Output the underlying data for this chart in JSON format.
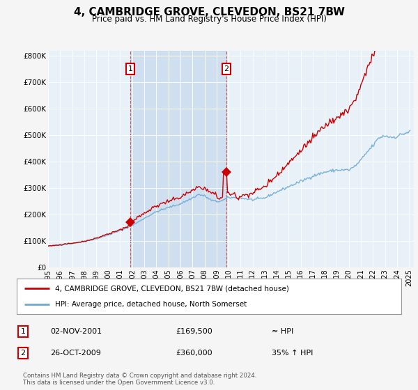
{
  "title": "4, CAMBRIDGE GROVE, CLEVEDON, BS21 7BW",
  "subtitle": "Price paid vs. HM Land Registry's House Price Index (HPI)",
  "bg_color": "#dce9f5",
  "outer_bg_color": "#f0f0f0",
  "chart_bg_color": "#e8f0f8",
  "shade_color": "#c5d8ec",
  "hpi_color": "#6aaad4",
  "price_color": "#cc0000",
  "grid_color": "#ffffff",
  "ylim": [
    0,
    820000
  ],
  "yticks": [
    0,
    100000,
    200000,
    300000,
    400000,
    500000,
    600000,
    700000,
    800000
  ],
  "ytick_labels": [
    "£0",
    "£100K",
    "£200K",
    "£300K",
    "£400K",
    "£500K",
    "£600K",
    "£700K",
    "£800K"
  ],
  "sale1_year": 2001.83,
  "sale1_price": 169500,
  "sale2_year": 2009.82,
  "sale2_price": 360000,
  "legend_label_price": "4, CAMBRIDGE GROVE, CLEVEDON, BS21 7BW (detached house)",
  "legend_label_hpi": "HPI: Average price, detached house, North Somerset",
  "annotation1_label": "1",
  "annotation2_label": "2",
  "table_row1": [
    "1",
    "02-NOV-2001",
    "£169,500",
    "≈ HPI"
  ],
  "table_row2": [
    "2",
    "26-OCT-2009",
    "£360,000",
    "35% ↑ HPI"
  ],
  "footer": "Contains HM Land Registry data © Crown copyright and database right 2024.\nThis data is licensed under the Open Government Licence v3.0."
}
